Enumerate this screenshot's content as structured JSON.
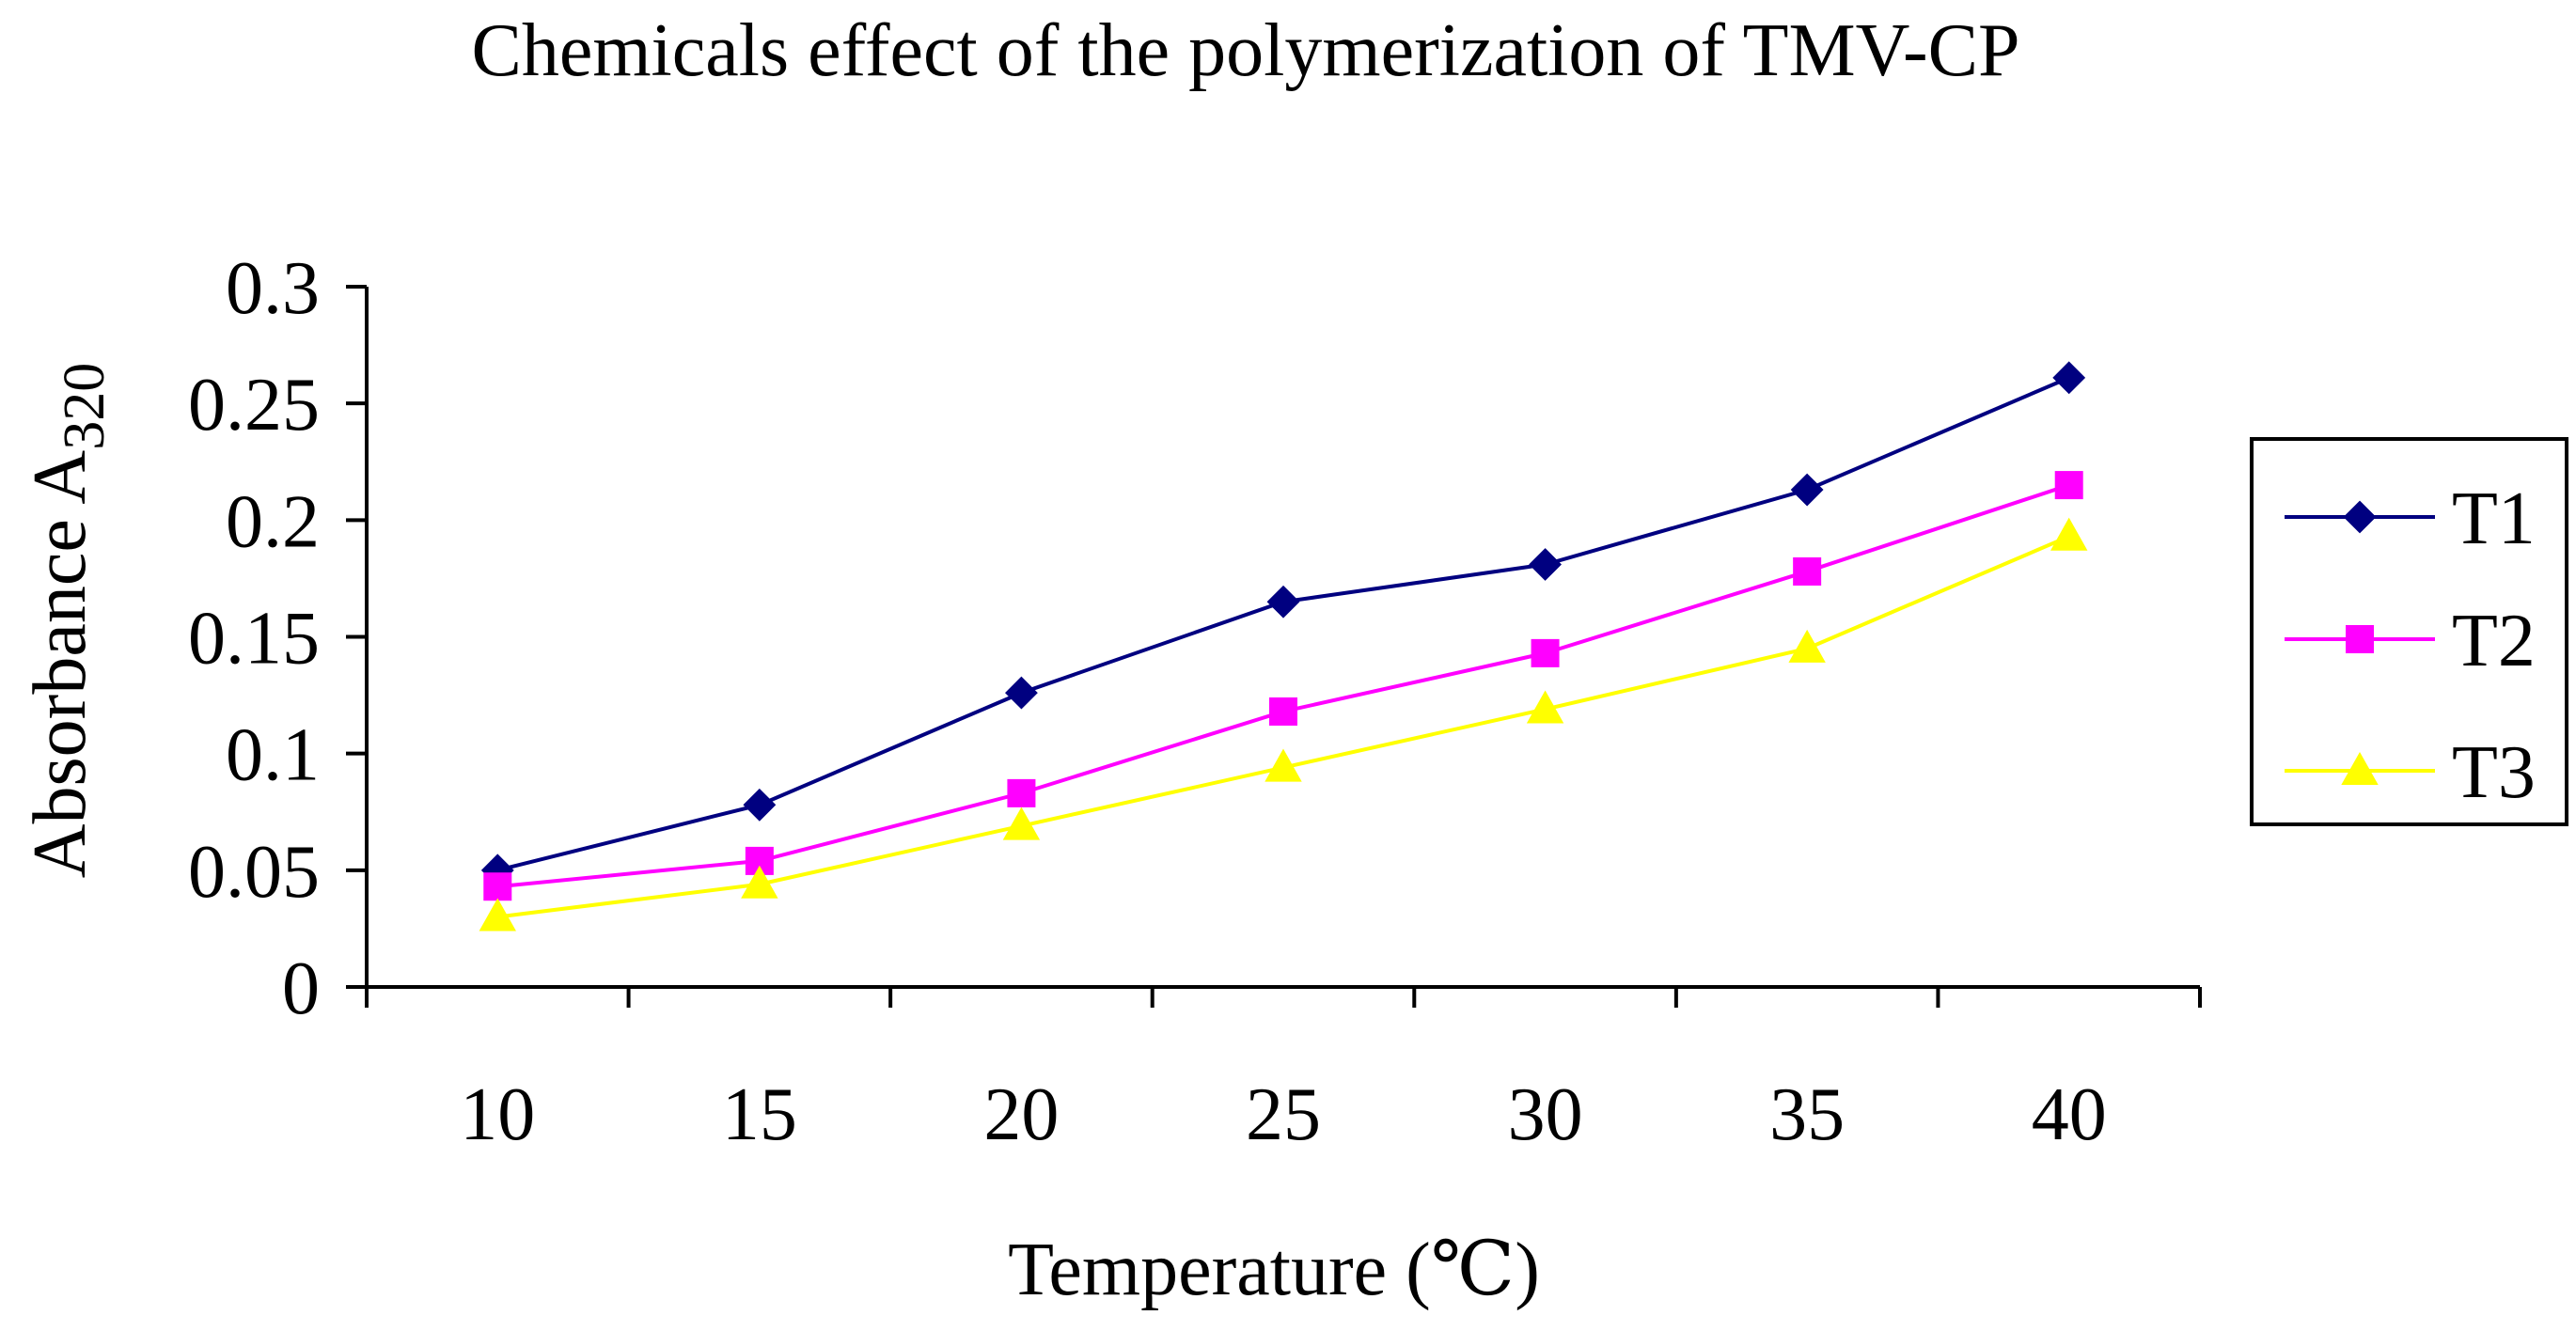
{
  "chart_data": {
    "type": "line",
    "title": "Chemicals effect of the polymerization of TMV-CP",
    "xlabel": "Temperature (℃)",
    "ylabel_main": "Absorbance A",
    "ylabel_sub": "320",
    "categories": [
      "10",
      "15",
      "20",
      "25",
      "30",
      "35",
      "40"
    ],
    "ylim": [
      0,
      0.3
    ],
    "yticks": [
      "0",
      "0.05",
      "0.1",
      "0.15",
      "0.2",
      "0.25",
      "0.3"
    ],
    "grid": false,
    "legend_position": "right",
    "series": [
      {
        "name": "T1",
        "marker": "diamond",
        "color": "#000080",
        "values": [
          0.05,
          0.078,
          0.126,
          0.165,
          0.181,
          0.213,
          0.261
        ]
      },
      {
        "name": "T2",
        "marker": "square",
        "color": "#FF00FF",
        "values": [
          0.043,
          0.054,
          0.083,
          0.118,
          0.143,
          0.178,
          0.215
        ]
      },
      {
        "name": "T3",
        "marker": "triangle",
        "color": "#FFFF00",
        "values": [
          0.03,
          0.044,
          0.069,
          0.094,
          0.119,
          0.145,
          0.193
        ]
      }
    ]
  }
}
